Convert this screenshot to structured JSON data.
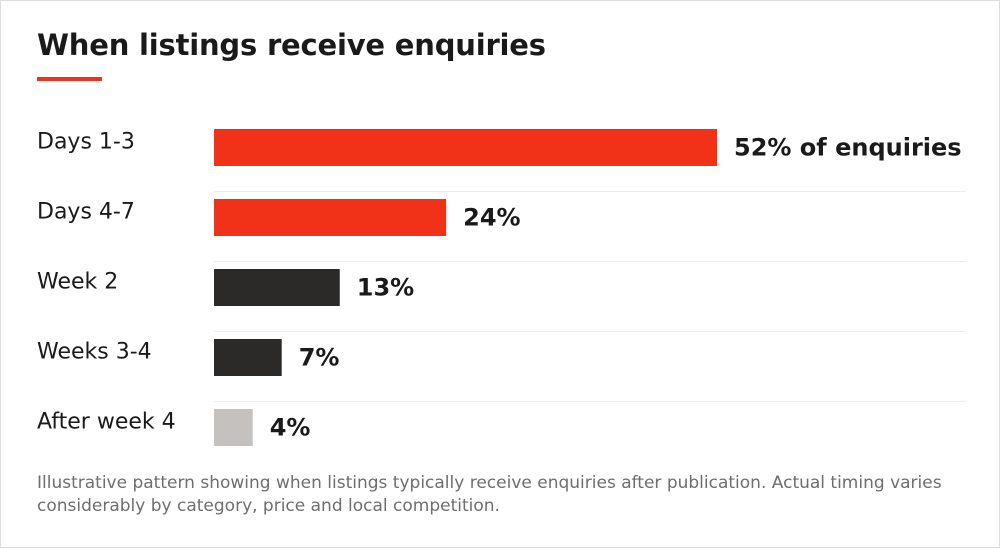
{
  "chart_data": {
    "type": "bar",
    "orientation": "horizontal",
    "title": "When listings receive enquiries",
    "categories": [
      "Days 1-3",
      "Days 4-7",
      "Week 2",
      "Weeks 3-4",
      "After week 4"
    ],
    "values": [
      52,
      24,
      13,
      7,
      4
    ],
    "value_labels": [
      "52% of enquiries",
      "24%",
      "13%",
      "7%",
      "4%"
    ],
    "unit": "%",
    "xlim": [
      0,
      52
    ],
    "grid": false,
    "legend": "none",
    "colors": [
      "#f13219",
      "#f13219",
      "#2b2a29",
      "#2b2a29",
      "#c4c1bf"
    ]
  },
  "note": "Illustrative pattern showing when listings typically receive enquiries after publication. Actual timing varies considerably by category, price and local competition.",
  "colors": {
    "accent": "#f13219",
    "dark": "#2b2a29",
    "muted": "#c4c1bf",
    "separator": "#ededed",
    "note_text": "#6e6e6e"
  }
}
